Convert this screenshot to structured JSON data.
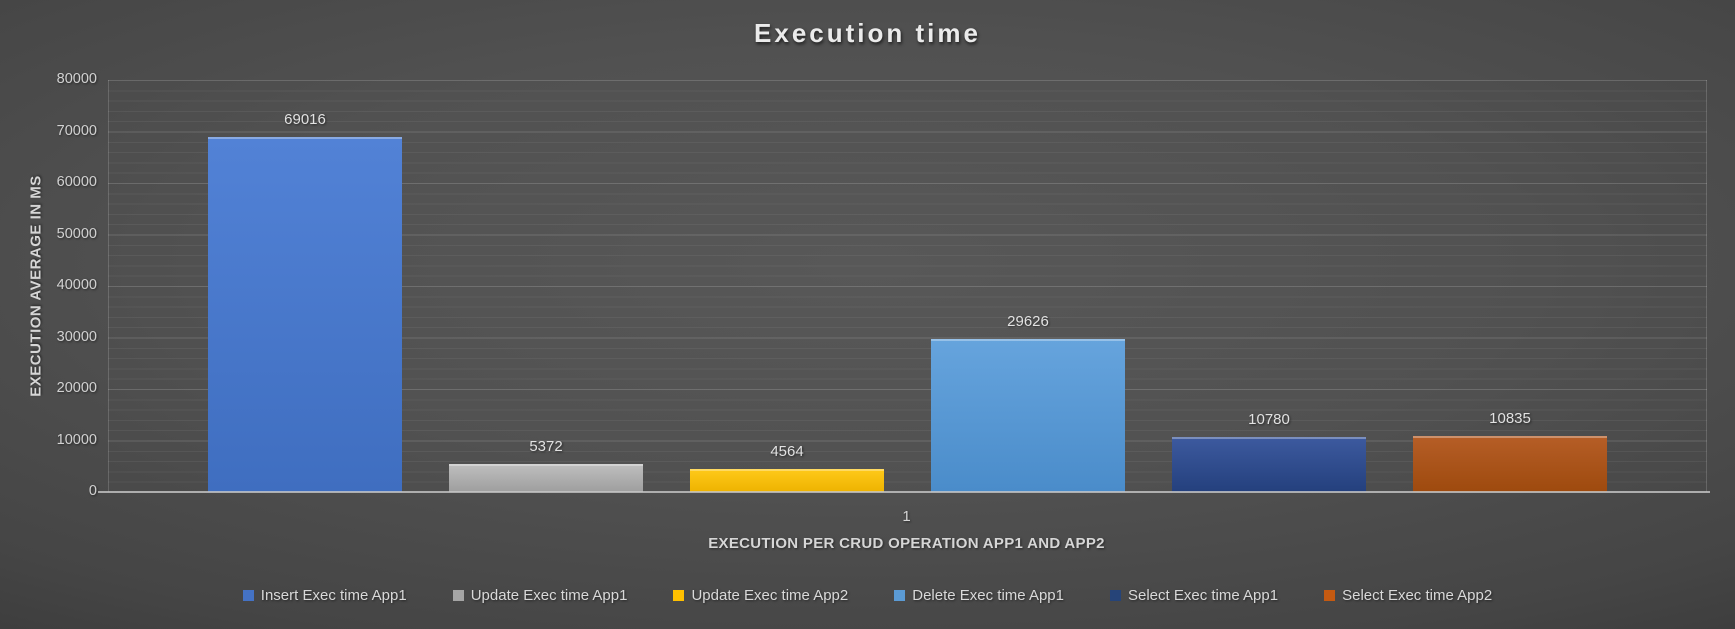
{
  "title": "Execution time",
  "y_axis": {
    "title": "EXECUTION AVERAGE IN MS",
    "tick_labels": [
      "80000",
      "70000",
      "60000",
      "50000",
      "40000",
      "30000",
      "20000",
      "10000",
      "0"
    ]
  },
  "x_axis": {
    "title": "EXECUTION PER CRUD OPERATION APP1 AND APP2",
    "category_label": "1"
  },
  "chart_data": {
    "type": "bar",
    "title": "Execution time",
    "xlabel": "EXECUTION PER CRUD OPERATION APP1 AND APP2",
    "ylabel": "EXECUTION AVERAGE IN MS",
    "categories": [
      "1"
    ],
    "series": [
      {
        "name": "Insert Exec time App1",
        "value": 69016,
        "color": "#4472C4",
        "color_top": "#5282d6",
        "color_bottom": "#3f6ec0"
      },
      {
        "name": "Update Exec time App1",
        "value": 5372,
        "color": "#A5A5A5",
        "color_top": "#bfbfbf",
        "color_bottom": "#9e9e9e"
      },
      {
        "name": "Update Exec time App2",
        "value": 4564,
        "color": "#FFC000",
        "color_top": "#ffca1a",
        "color_bottom": "#eeb300"
      },
      {
        "name": "Delete Exec time App1",
        "value": 29626,
        "color": "#5B9BD5",
        "color_top": "#66a4dd",
        "color_bottom": "#4a8cca"
      },
      {
        "name": "Select Exec time App1",
        "value": 10780,
        "color": "#264478",
        "color_top": "#3d5a9f",
        "color_bottom": "#24407d"
      },
      {
        "name": "Select Exec time App2",
        "value": 10835,
        "color": "#C55A11",
        "color_top": "#b65e27",
        "color_bottom": "#9e4a0e"
      }
    ],
    "ylim": [
      0,
      80000
    ],
    "ytick_step": 10000,
    "minor_gridline_step": 2000,
    "grid": "horizontal-major-and-minor",
    "legend_position": "bottom",
    "background_color": "#4a4a4a",
    "text_color": "#d9d9d9",
    "data_labels_shown": true
  }
}
